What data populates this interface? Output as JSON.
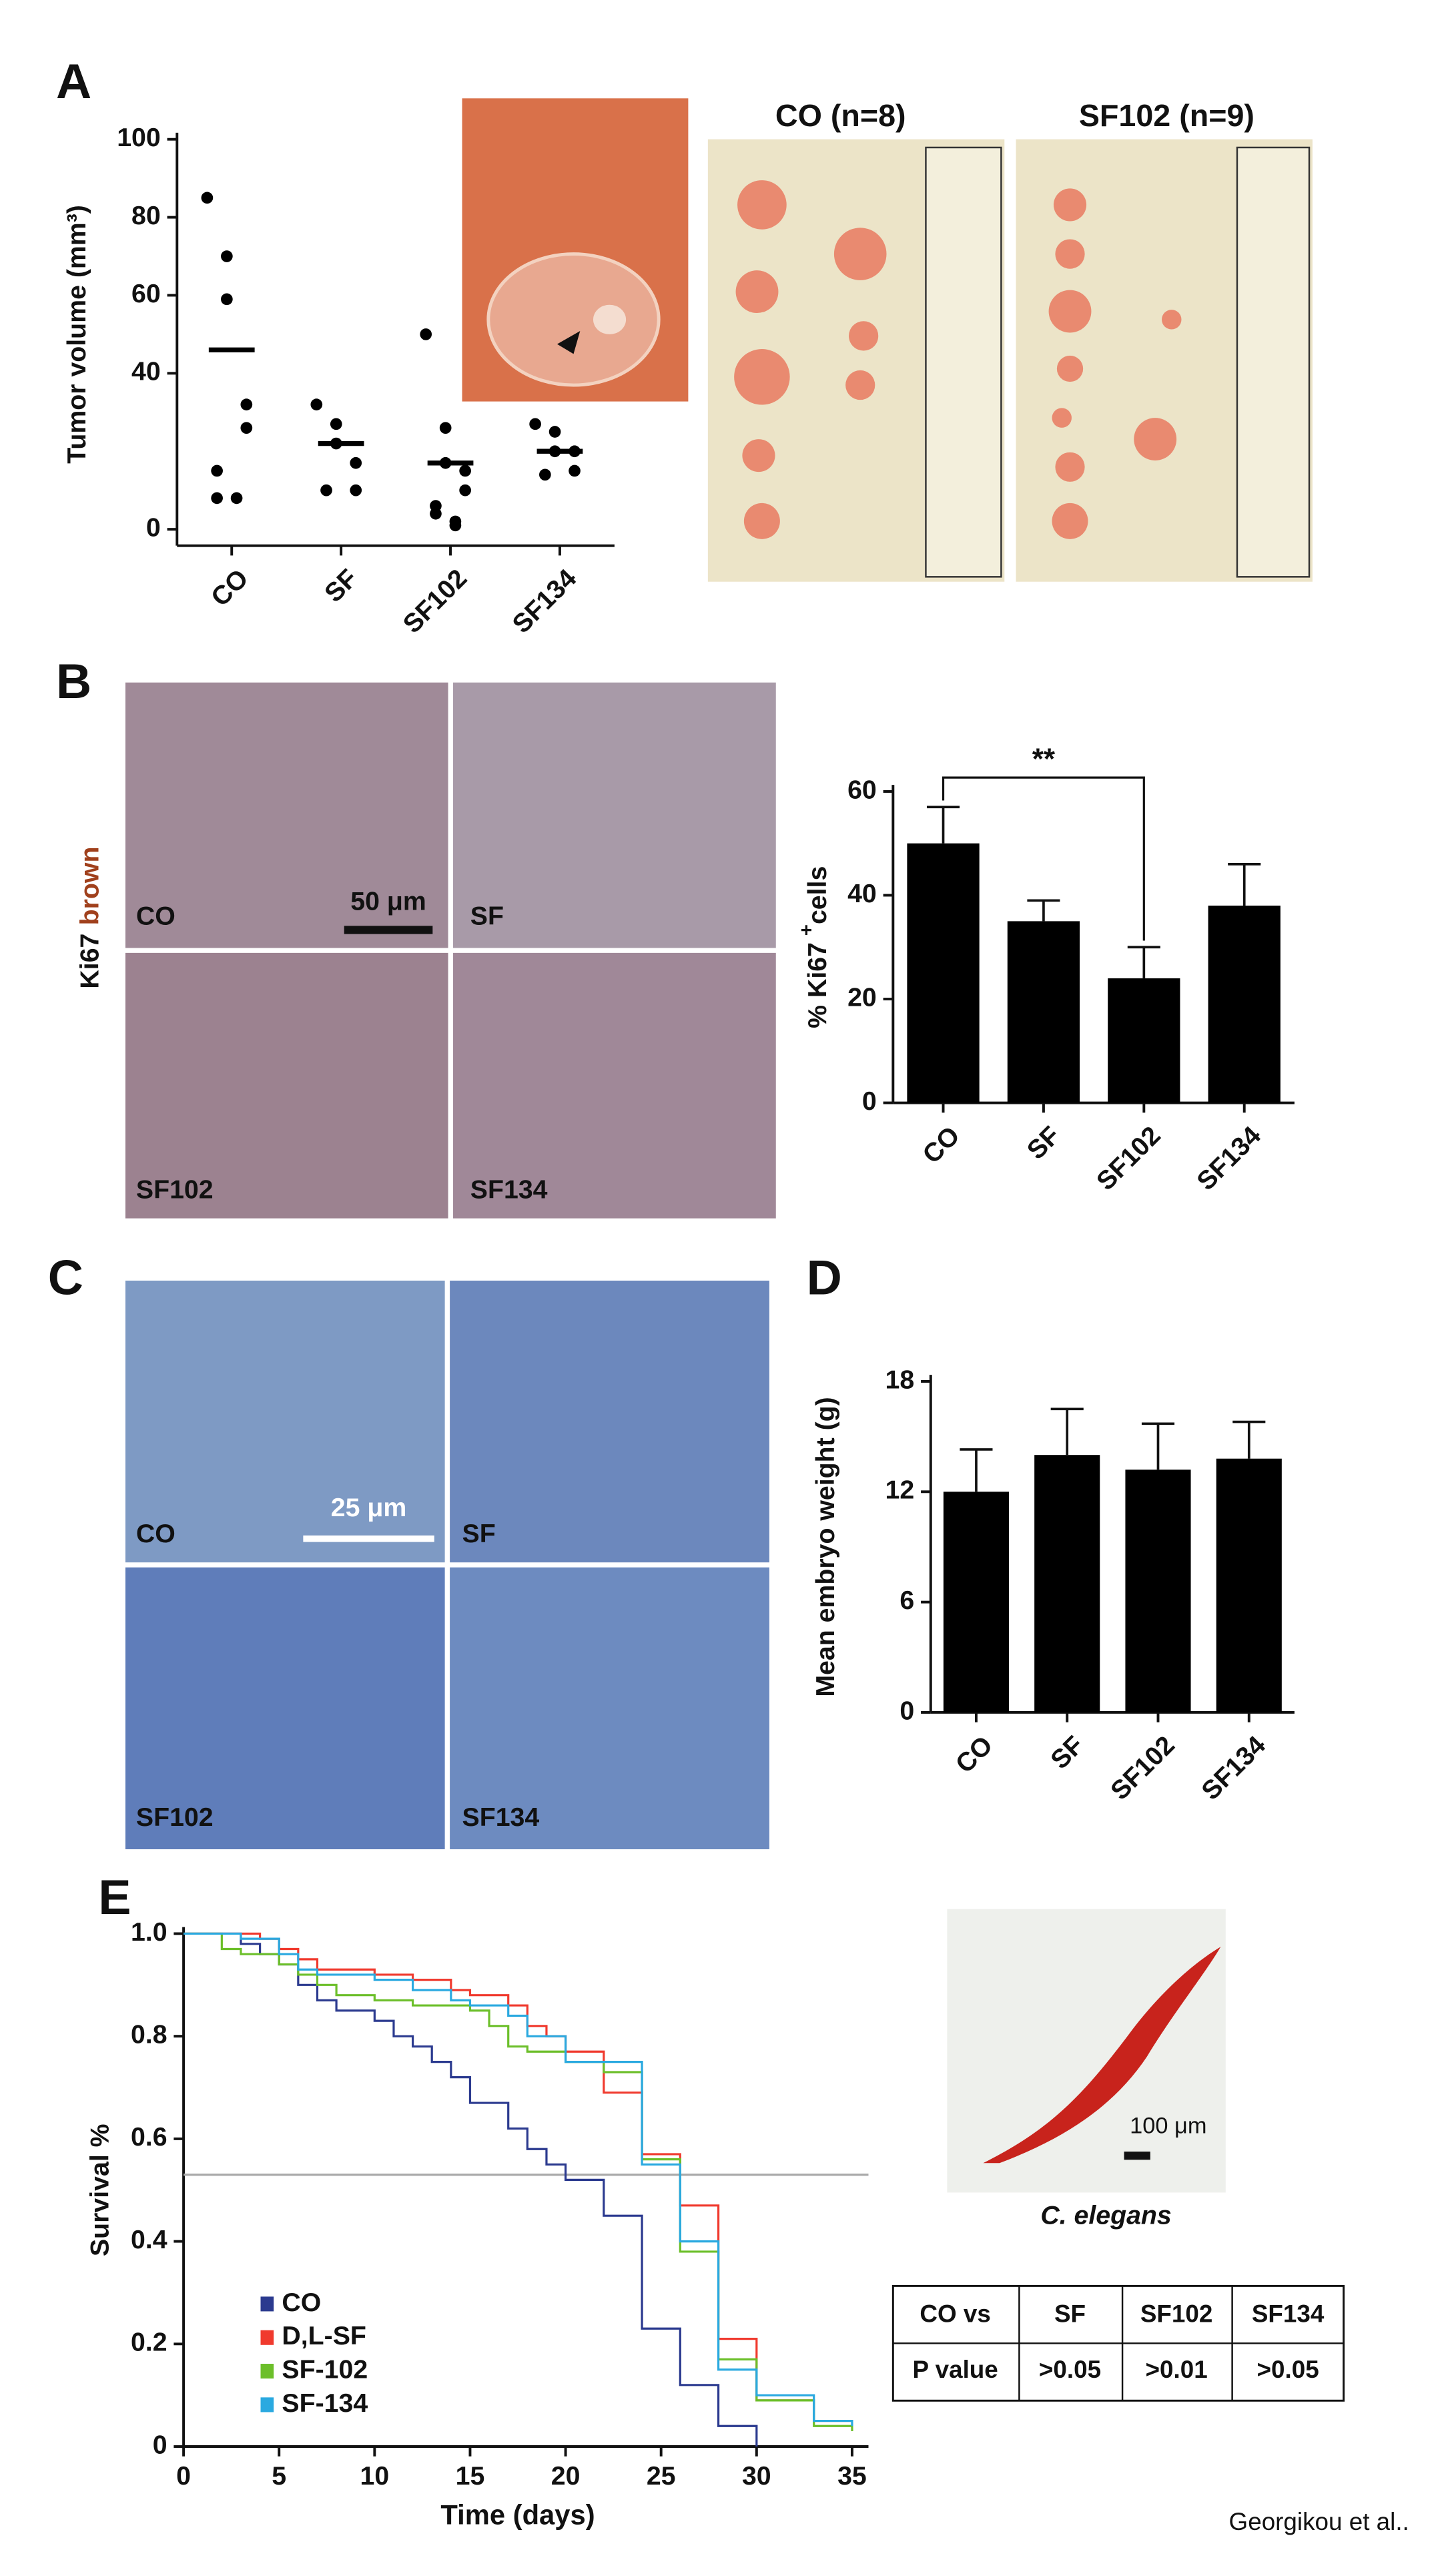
{
  "figure": {
    "panels": [
      "A",
      "B",
      "C",
      "D",
      "E"
    ],
    "credit": "Georgikou et al.."
  },
  "photo_a": {
    "titles": [
      "CO (n=8)",
      "SF102 (n=9)"
    ]
  },
  "micrographs_b": {
    "labels": [
      "CO",
      "SF",
      "SF102",
      "SF134"
    ],
    "scale": "50 μm",
    "stain": "Ki67",
    "stain_color": "brown"
  },
  "micrographs_c": {
    "labels": [
      "CO",
      "SF",
      "SF102",
      "SF134"
    ],
    "scale": "25 μm"
  },
  "worm": {
    "scale": "100 μm",
    "caption": "C. elegans"
  },
  "table": {
    "rows": [
      [
        "CO vs",
        "SF",
        "SF102",
        "SF134"
      ],
      [
        "P value",
        ">0.05",
        ">0.01",
        ">0.05"
      ]
    ]
  },
  "chart_data": [
    {
      "type": "strip",
      "ylabel": "Tumor volume (mm³)",
      "categories": [
        "CO",
        "SF",
        "SF102",
        "SF134"
      ],
      "values": [
        [
          85,
          70,
          59,
          32,
          26,
          15,
          8,
          8
        ],
        [
          32,
          27,
          22,
          17,
          10,
          10
        ],
        [
          50,
          26,
          17,
          15,
          10,
          6,
          4,
          2,
          1
        ],
        [
          27,
          25,
          20,
          20,
          15,
          14
        ]
      ],
      "means": [
        46,
        22,
        17,
        20
      ],
      "color": "#000000",
      "ylim": [
        0,
        100
      ],
      "yticks": [
        0,
        40,
        60,
        80,
        100
      ]
    },
    {
      "type": "bar",
      "ylabel": "% Ki67",
      "ylabel_sup": "+",
      "ylabel_end": "cells",
      "categories": [
        "CO",
        "SF",
        "SF102",
        "SF134"
      ],
      "values": [
        50,
        35,
        24,
        38
      ],
      "errors": [
        7,
        4,
        6,
        8
      ],
      "color": "#000000",
      "annotation": "**",
      "ylim": [
        0,
        60
      ],
      "yticks": [
        0,
        20,
        40,
        60
      ]
    },
    {
      "type": "bar",
      "ylabel": "Mean embryo weight (g)",
      "categories": [
        "CO",
        "SF",
        "SF102",
        "SF134"
      ],
      "values": [
        12,
        14,
        13.2,
        13.8
      ],
      "errors": [
        2.3,
        2.5,
        2.5,
        2
      ],
      "color": "#000000",
      "ylim": [
        0,
        18
      ],
      "yticks": [
        0,
        6,
        12,
        18
      ]
    },
    {
      "type": "step",
      "xlabel": "Time (days)",
      "ylabel": "Survival %",
      "series": [
        {
          "name": "CO",
          "color": "#2b3a8f",
          "x": [
            0,
            2,
            3,
            4,
            5,
            6,
            7,
            8,
            10,
            11,
            12,
            13,
            14,
            15,
            17,
            18,
            19,
            20,
            22,
            24,
            26,
            28,
            30
          ],
          "values": [
            1,
            1,
            0.98,
            0.96,
            0.94,
            0.9,
            0.87,
            0.85,
            0.83,
            0.8,
            0.78,
            0.75,
            0.72,
            0.67,
            0.62,
            0.58,
            0.55,
            0.52,
            0.45,
            0.23,
            0.12,
            0.04,
            0
          ]
        },
        {
          "name": "D,L-SF",
          "color": "#f03a2e",
          "x": [
            0,
            3,
            4,
            5,
            6,
            7,
            10,
            12,
            14,
            15,
            17,
            18,
            19,
            20,
            22,
            24,
            26,
            28,
            30,
            33,
            35
          ],
          "values": [
            1,
            1,
            0.99,
            0.97,
            0.95,
            0.93,
            0.92,
            0.91,
            0.89,
            0.88,
            0.86,
            0.82,
            0.8,
            0.77,
            0.69,
            0.57,
            0.47,
            0.21,
            0.09,
            0.05,
            0.05
          ]
        },
        {
          "name": "SF-102",
          "color": "#6cbf2a",
          "x": [
            0,
            2,
            3,
            5,
            6,
            7,
            8,
            10,
            12,
            15,
            16,
            17,
            18,
            20,
            22,
            24,
            26,
            28,
            30,
            33,
            35
          ],
          "values": [
            1,
            0.97,
            0.96,
            0.94,
            0.92,
            0.9,
            0.88,
            0.87,
            0.86,
            0.85,
            0.82,
            0.78,
            0.77,
            0.75,
            0.73,
            0.56,
            0.38,
            0.17,
            0.09,
            0.04,
            0.03
          ]
        },
        {
          "name": "SF-134",
          "color": "#2aa9e0",
          "x": [
            0,
            3,
            5,
            6,
            7,
            10,
            12,
            14,
            15,
            17,
            18,
            20,
            22,
            24,
            26,
            28,
            30,
            33,
            35
          ],
          "values": [
            1,
            0.99,
            0.96,
            0.93,
            0.92,
            0.91,
            0.89,
            0.87,
            0.86,
            0.84,
            0.8,
            0.75,
            0.75,
            0.55,
            0.4,
            0.15,
            0.1,
            0.05,
            0.04
          ]
        }
      ],
      "reference_line": 0.53,
      "reference_color": "#aaaaaa",
      "xlim": [
        0,
        35
      ],
      "xticks": [
        0,
        5,
        10,
        15,
        20,
        25,
        30,
        35
      ],
      "ylim": [
        0,
        1
      ],
      "yticks": [
        0,
        0.2,
        0.4,
        0.6,
        0.8,
        {
          "value": 1,
          "label": "1.0"
        }
      ],
      "legend": "lower-left"
    }
  ]
}
